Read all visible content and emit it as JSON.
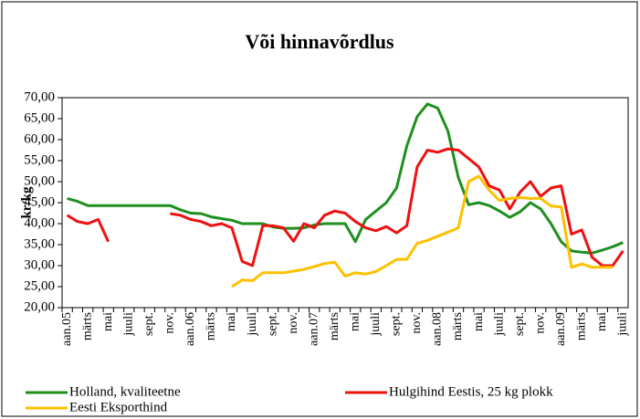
{
  "chart_data": {
    "type": "line",
    "title": "Või hinnavõrdlus",
    "y_label": "kr/kg",
    "categories": [
      "aan.05",
      null,
      "märts",
      null,
      "mai",
      null,
      "juuli",
      null,
      "sept.",
      null,
      "nov.",
      null,
      "aan.06",
      null,
      "märts",
      null,
      "mai",
      null,
      "juuli",
      null,
      "sept.",
      null,
      "nov.",
      null,
      "aan.07",
      null,
      "märts",
      null,
      "mai",
      null,
      "juuli",
      null,
      "sept.",
      null,
      "nov.",
      null,
      "aan.08",
      null,
      "märts",
      null,
      "mai",
      null,
      "juuli",
      null,
      "sept.",
      null,
      "nov.",
      null,
      "aan.09",
      null,
      "märts",
      null,
      "mai",
      null,
      "juuli"
    ],
    "series": [
      {
        "name": "Holland, kvaliteetne",
        "color": "#1f8f1f",
        "values": [
          46,
          45.3,
          44.3,
          44.3,
          44.3,
          44.3,
          44.3,
          44.3,
          44.3,
          44.3,
          44.3,
          43.3,
          42.5,
          42.4,
          41.6,
          41.2,
          40.8,
          40,
          40,
          40,
          39.2,
          38.9,
          38.9,
          39,
          39.7,
          40,
          40,
          40,
          35.7,
          41,
          43,
          45,
          48.5,
          58.5,
          65.5,
          68.5,
          67.5,
          62,
          51,
          44.5,
          45,
          44.3,
          43,
          41.5,
          42.8,
          45,
          43.5,
          40,
          35.7,
          33.5,
          33.2,
          33,
          33.7,
          34.5,
          35.5
        ]
      },
      {
        "name": "Hulgihind Eestis, 25 kg plokk",
        "color": "#ee1111",
        "values": [
          42,
          40.5,
          40,
          41,
          35.7,
          null,
          null,
          null,
          null,
          null,
          42.4,
          42,
          41,
          40.5,
          39.5,
          40,
          39,
          31,
          30,
          39.5,
          39.5,
          39,
          35.8,
          40,
          39,
          42,
          43,
          42.5,
          40.5,
          39,
          38.3,
          39.3,
          37.8,
          39.5,
          53.5,
          57.5,
          57,
          57.8,
          57.5,
          55.5,
          53.5,
          49,
          48,
          43.5,
          47.5,
          50,
          46.5,
          48.5,
          49,
          37.5,
          38.5,
          32,
          30,
          30,
          33.5
        ]
      },
      {
        "name": "Eesti Eksporthind",
        "color": "#ffc000",
        "values": [
          null,
          null,
          null,
          null,
          null,
          null,
          null,
          null,
          null,
          null,
          null,
          null,
          null,
          null,
          null,
          null,
          25,
          26.6,
          26.4,
          28.3,
          28.3,
          28.3,
          28.7,
          29.1,
          29.8,
          30.5,
          30.8,
          27.5,
          28.3,
          28,
          28.6,
          30,
          31.5,
          31.5,
          35.3,
          36,
          37,
          38,
          39,
          50,
          51.3,
          48,
          45.5,
          46,
          46.2,
          46,
          46,
          44.2,
          44,
          29.6,
          30.4,
          29.6,
          29.6,
          29.6,
          null
        ]
      }
    ],
    "ylim": [
      20,
      70
    ],
    "yticks": [
      {
        "value": 20,
        "label": "20,00"
      },
      {
        "value": 25,
        "label": "25,00"
      },
      {
        "value": 30,
        "label": "30,00"
      },
      {
        "value": 35,
        "label": "35,00"
      },
      {
        "value": 40,
        "label": "40,00"
      },
      {
        "value": 45,
        "label": "45,00"
      },
      {
        "value": 50,
        "label": "50,00"
      },
      {
        "value": 55,
        "label": "55,00"
      },
      {
        "value": 60,
        "label": "60,00"
      },
      {
        "value": 65,
        "label": "65,00"
      },
      {
        "value": 70,
        "label": "70,00"
      }
    ],
    "grid": false,
    "legend": "bottom"
  }
}
